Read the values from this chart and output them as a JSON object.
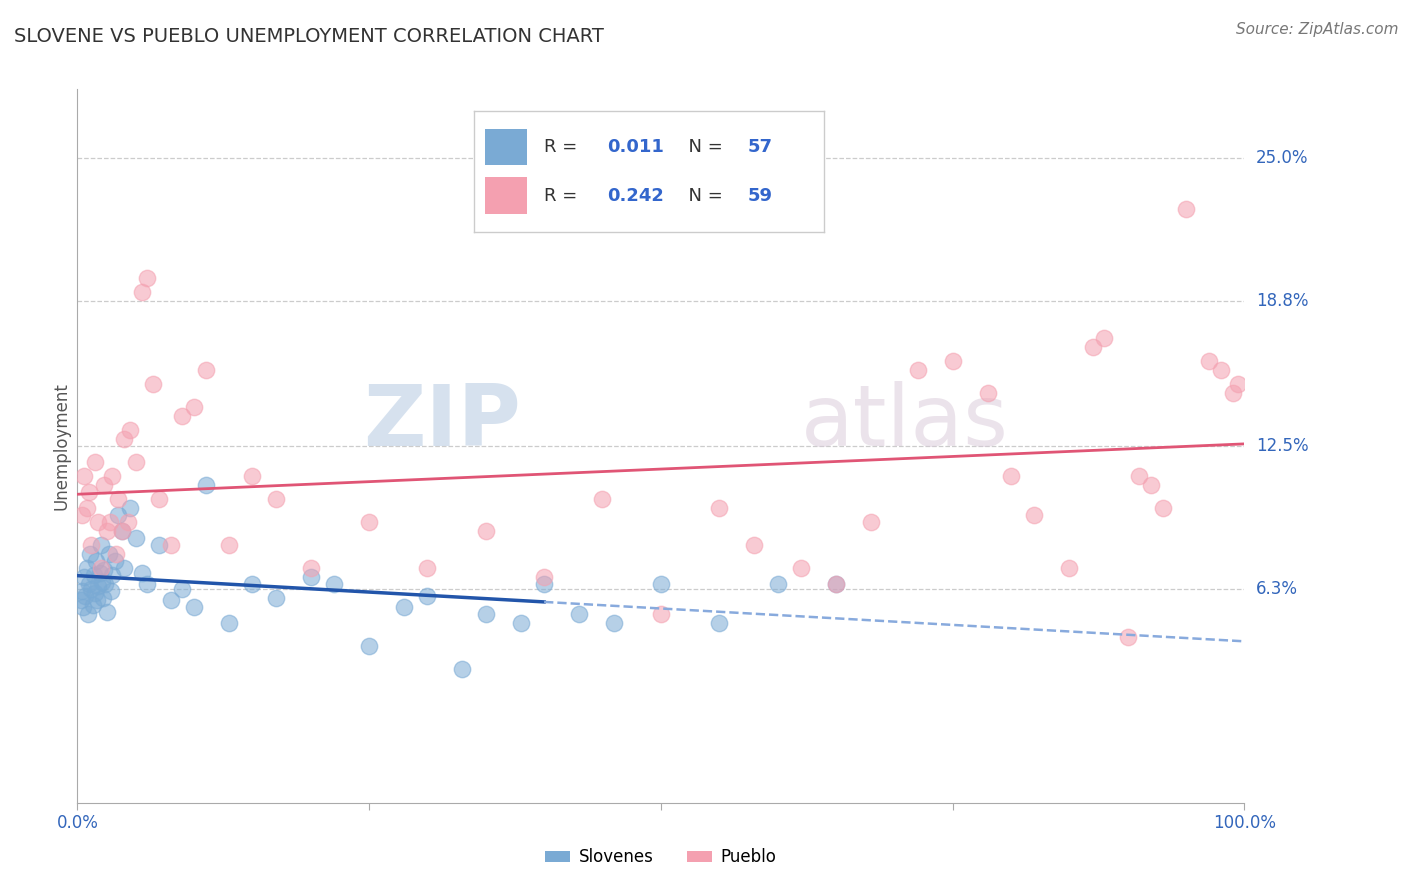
{
  "title": "SLOVENE VS PUEBLO UNEMPLOYMENT CORRELATION CHART",
  "source": "Source: ZipAtlas.com",
  "ylabel": "Unemployment",
  "watermark_zip": "ZIP",
  "watermark_atlas": "atlas",
  "xlim": [
    0,
    100
  ],
  "ylim": [
    -3,
    28
  ],
  "ytick_vals": [
    6.3,
    12.5,
    18.8,
    25.0
  ],
  "ytick_labels": [
    "6.3%",
    "12.5%",
    "18.8%",
    "25.0%"
  ],
  "slovene_R": "0.011",
  "slovene_N": "57",
  "pueblo_R": "0.242",
  "pueblo_N": "59",
  "slovene_color": "#7aaad4",
  "pueblo_color": "#f4a0b0",
  "slovene_line_solid": "#2255aa",
  "slovene_line_dash": "#88aadd",
  "pueblo_line_color": "#e05575",
  "legend_slovene_label": "Slovenes",
  "legend_pueblo_label": "Pueblo",
  "slovene_x": [
    0.3,
    0.4,
    0.5,
    0.6,
    0.7,
    0.8,
    0.9,
    1.0,
    1.1,
    1.2,
    1.3,
    1.4,
    1.5,
    1.6,
    1.7,
    1.8,
    1.9,
    2.0,
    2.1,
    2.2,
    2.3,
    2.4,
    2.5,
    2.7,
    2.9,
    3.0,
    3.2,
    3.5,
    3.8,
    4.0,
    4.5,
    5.0,
    5.5,
    6.0,
    7.0,
    8.0,
    9.0,
    10.0,
    11.0,
    13.0,
    15.0,
    17.0,
    20.0,
    22.0,
    25.0,
    28.0,
    30.0,
    33.0,
    35.0,
    38.0,
    40.0,
    43.0,
    46.0,
    50.0,
    55.0,
    60.0,
    65.0
  ],
  "slovene_y": [
    5.8,
    6.2,
    5.5,
    6.8,
    6.0,
    7.2,
    5.2,
    6.5,
    7.8,
    6.3,
    5.6,
    6.9,
    6.1,
    7.5,
    5.8,
    6.4,
    7.0,
    8.2,
    6.6,
    5.9,
    7.1,
    6.5,
    5.3,
    7.8,
    6.2,
    6.9,
    7.5,
    9.5,
    8.8,
    7.2,
    9.8,
    8.5,
    7.0,
    6.5,
    8.2,
    5.8,
    6.3,
    5.5,
    10.8,
    4.8,
    6.5,
    5.9,
    6.8,
    6.5,
    3.8,
    5.5,
    6.0,
    2.8,
    5.2,
    4.8,
    6.5,
    5.2,
    4.8,
    6.5,
    4.8,
    6.5,
    6.5
  ],
  "pueblo_x": [
    0.4,
    0.6,
    0.8,
    1.0,
    1.2,
    1.5,
    1.8,
    2.0,
    2.3,
    2.5,
    2.8,
    3.0,
    3.3,
    3.5,
    3.8,
    4.0,
    4.3,
    4.5,
    5.0,
    5.5,
    6.0,
    6.5,
    7.0,
    8.0,
    9.0,
    10.0,
    11.0,
    13.0,
    15.0,
    17.0,
    20.0,
    25.0,
    30.0,
    35.0,
    40.0,
    45.0,
    50.0,
    55.0,
    58.0,
    62.0,
    65.0,
    68.0,
    72.0,
    75.0,
    78.0,
    80.0,
    82.0,
    85.0,
    87.0,
    88.0,
    90.0,
    91.0,
    92.0,
    93.0,
    95.0,
    97.0,
    98.0,
    99.0,
    99.5
  ],
  "pueblo_y": [
    9.5,
    11.2,
    9.8,
    10.5,
    8.2,
    11.8,
    9.2,
    7.2,
    10.8,
    8.8,
    9.2,
    11.2,
    7.8,
    10.2,
    8.8,
    12.8,
    9.2,
    13.2,
    11.8,
    19.2,
    19.8,
    15.2,
    10.2,
    8.2,
    13.8,
    14.2,
    15.8,
    8.2,
    11.2,
    10.2,
    7.2,
    9.2,
    7.2,
    8.8,
    6.8,
    10.2,
    5.2,
    9.8,
    8.2,
    7.2,
    6.5,
    9.2,
    15.8,
    16.2,
    14.8,
    11.2,
    9.5,
    7.2,
    16.8,
    17.2,
    4.2,
    11.2,
    10.8,
    9.8,
    22.8,
    16.2,
    15.8,
    14.8,
    15.2
  ]
}
